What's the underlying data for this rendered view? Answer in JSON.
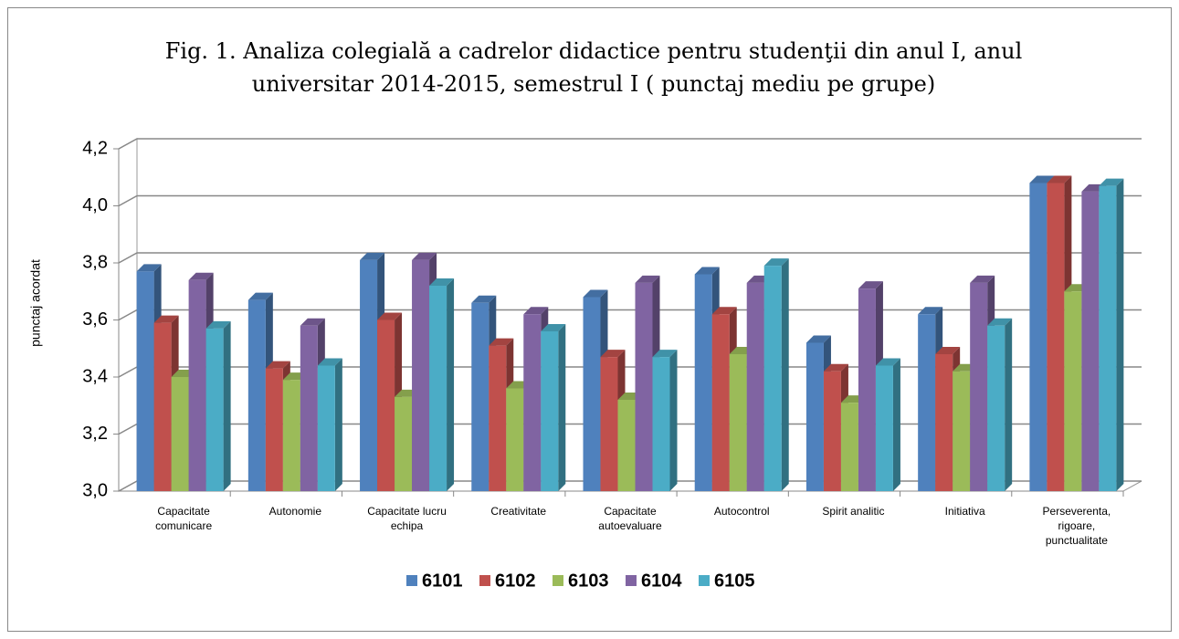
{
  "chart_data": {
    "type": "bar3d",
    "title": "Fig. 1. Analiza colegială a cadrelor didactice pentru studenţii din anul I, anul universitar 2014-2015, semestrul I ( punctaj mediu pe grupe)",
    "y_label": "punctaj acordat",
    "categories": [
      "Capacitate comunicare",
      "Autonomie",
      "Capacitate lucru echipa",
      "Creativitate",
      "Capacitate autoevaluare",
      "Autocontrol",
      "Spirit analitic",
      "Initiativa",
      "Perseverenta, rigoare, punctualitate"
    ],
    "series": [
      {
        "name": "6101",
        "color": "#4f81bd",
        "values": [
          3.77,
          3.67,
          3.81,
          3.66,
          3.68,
          3.76,
          3.52,
          3.62,
          4.08
        ]
      },
      {
        "name": "6102",
        "color": "#c0504d",
        "values": [
          3.59,
          3.43,
          3.6,
          3.51,
          3.47,
          3.62,
          3.42,
          3.48,
          4.08
        ]
      },
      {
        "name": "6103",
        "color": "#9bbb59",
        "values": [
          3.4,
          3.39,
          3.33,
          3.36,
          3.32,
          3.48,
          3.31,
          3.42,
          3.7
        ]
      },
      {
        "name": "6104",
        "color": "#8064a2",
        "values": [
          3.74,
          3.58,
          3.81,
          3.62,
          3.73,
          3.73,
          3.71,
          3.73,
          4.05
        ]
      },
      {
        "name": "6105",
        "color": "#4bacc6",
        "values": [
          3.57,
          3.44,
          3.72,
          3.56,
          3.47,
          3.79,
          3.44,
          3.58,
          4.07
        ]
      }
    ],
    "ylim": [
      3.0,
      4.2
    ],
    "yticks": [
      {
        "value": 3.0,
        "label": "3,0"
      },
      {
        "value": 3.2,
        "label": "3,2"
      },
      {
        "value": 3.4,
        "label": "3,4"
      },
      {
        "value": 3.6,
        "label": "3,6"
      },
      {
        "value": 3.8,
        "label": "3,8"
      },
      {
        "value": 4.0,
        "label": "4,0"
      },
      {
        "value": 4.2,
        "label": "4,2"
      }
    ],
    "grid": true,
    "legend": "bottom"
  }
}
